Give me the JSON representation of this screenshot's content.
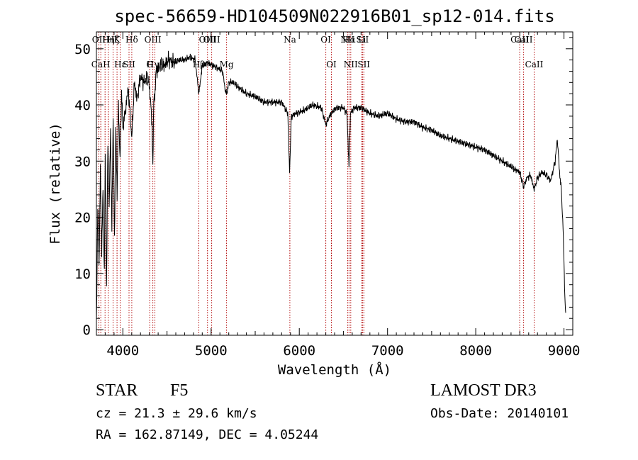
{
  "chart_data": {
    "type": "line",
    "title": "spec-56659-HD104509N022916B01_sp12-014.fits",
    "xlabel": "Wavelength (Å)",
    "ylabel": "Flux (relative)",
    "xlim": [
      3700,
      9100
    ],
    "ylim": [
      -1,
      53
    ],
    "xticks": [
      4000,
      5000,
      6000,
      7000,
      8000,
      9000
    ],
    "yticks": [
      0,
      10,
      20,
      30,
      40,
      50
    ],
    "line_color": "#000000",
    "marker_color": "#b00000",
    "series": [
      {
        "name": "flux",
        "x": [
          3700,
          3715,
          3730,
          3745,
          3760,
          3775,
          3790,
          3800,
          3815,
          3830,
          3845,
          3860,
          3875,
          3890,
          3905,
          3920,
          3935,
          3950,
          3968,
          3985,
          4000,
          4030,
          4060,
          4101,
          4130,
          4160,
          4200,
          4240,
          4280,
          4310,
          4330,
          4340,
          4350,
          4380,
          4420,
          4470,
          4520,
          4580,
          4640,
          4700,
          4760,
          4820,
          4861,
          4900,
          4960,
          5020,
          5080,
          5130,
          5167,
          5183,
          5200,
          5250,
          5320,
          5400,
          5500,
          5600,
          5700,
          5800,
          5870,
          5890,
          5910,
          5960,
          6050,
          6150,
          6250,
          6300,
          6360,
          6420,
          6500,
          6540,
          6563,
          6580,
          6620,
          6700,
          6800,
          6900,
          7000,
          7100,
          7200,
          7300,
          7400,
          7500,
          7600,
          7700,
          7800,
          7900,
          8000,
          8100,
          8200,
          8300,
          8400,
          8450,
          8500,
          8542,
          8580,
          8620,
          8662,
          8700,
          8750,
          8800,
          8850,
          8900,
          8925,
          8950,
          8970,
          8990,
          9000,
          9010,
          9020
        ],
        "values": [
          1,
          22,
          12,
          28,
          14,
          25,
          10,
          30,
          8,
          33,
          22,
          35,
          18,
          38,
          16,
          36,
          24,
          40,
          30,
          42,
          36,
          39,
          43,
          34,
          44,
          41,
          45,
          44,
          45,
          42,
          36,
          29,
          40,
          46,
          47,
          47,
          48,
          47.5,
          48,
          48,
          48.5,
          48,
          42,
          47,
          47.5,
          47,
          46.5,
          46,
          42,
          42.5,
          44,
          44,
          43,
          42,
          41.5,
          40.5,
          40.5,
          40.5,
          38.5,
          28,
          38,
          38.5,
          39,
          40,
          39.5,
          36.5,
          38.5,
          39.5,
          39.5,
          38.5,
          29,
          38.5,
          39.5,
          39.5,
          38.5,
          38,
          38.5,
          37.5,
          37,
          37,
          36,
          35.5,
          34.5,
          34,
          33.5,
          33,
          32.5,
          32,
          31,
          30,
          29,
          28.5,
          28,
          25.5,
          27,
          27.5,
          25,
          27,
          28,
          27.5,
          26.5,
          30,
          34,
          28,
          25,
          18,
          12,
          6,
          3
        ]
      }
    ],
    "lines": [
      {
        "wl": 3727,
        "top": "OII",
        "bottom": ""
      },
      {
        "wl": 3750,
        "top": "",
        "bottom": "CaH"
      },
      {
        "wl": 3798,
        "top": "",
        "bottom": ""
      },
      {
        "wl": 3835,
        "top": "Hη",
        "bottom": ""
      },
      {
        "wl": 3889,
        "top": "Hζ",
        "bottom": ""
      },
      {
        "wl": 3934,
        "top": "K",
        "bottom": ""
      },
      {
        "wl": 3969,
        "top": "",
        "bottom": "Hε"
      },
      {
        "wl": 4070,
        "top": "",
        "bottom": "SII"
      },
      {
        "wl": 4101,
        "top": "Hδ",
        "bottom": ""
      },
      {
        "wl": 4304,
        "top": "",
        "bottom": "G"
      },
      {
        "wl": 4340,
        "top": "OIII",
        "bottom": "Hγ"
      },
      {
        "wl": 4363,
        "top": "",
        "bottom": ""
      },
      {
        "wl": 4861,
        "top": "",
        "bottom": "Hβ"
      },
      {
        "wl": 4959,
        "top": "OIII",
        "bottom": ""
      },
      {
        "wl": 5007,
        "top": "OIII",
        "bottom": ""
      },
      {
        "wl": 5175,
        "top": "",
        "bottom": "Mg"
      },
      {
        "wl": 5893,
        "top": "Na",
        "bottom": ""
      },
      {
        "wl": 6300,
        "top": "OI",
        "bottom": ""
      },
      {
        "wl": 6364,
        "top": "",
        "bottom": "OI"
      },
      {
        "wl": 6548,
        "top": "NII",
        "bottom": ""
      },
      {
        "wl": 6563,
        "top": "Hα",
        "bottom": ""
      },
      {
        "wl": 6583,
        "top": "",
        "bottom": "NII"
      },
      {
        "wl": 6708,
        "top": "Li",
        "bottom": ""
      },
      {
        "wl": 6717,
        "top": "SII",
        "bottom": ""
      },
      {
        "wl": 6731,
        "top": "",
        "bottom": "SII"
      },
      {
        "wl": 8498,
        "top": "CaII",
        "bottom": ""
      },
      {
        "wl": 8542,
        "top": "CaII",
        "bottom": ""
      },
      {
        "wl": 8662,
        "top": "",
        "bottom": "CaII"
      }
    ]
  },
  "info": {
    "class_label": "STAR",
    "subclass": "F5",
    "cz": "cz = 21.3 ± 29.6 km/s",
    "coords": "RA = 162.87149, DEC =   4.05244",
    "survey": "LAMOST DR3",
    "obs_date": "Obs-Date: 20140101"
  }
}
